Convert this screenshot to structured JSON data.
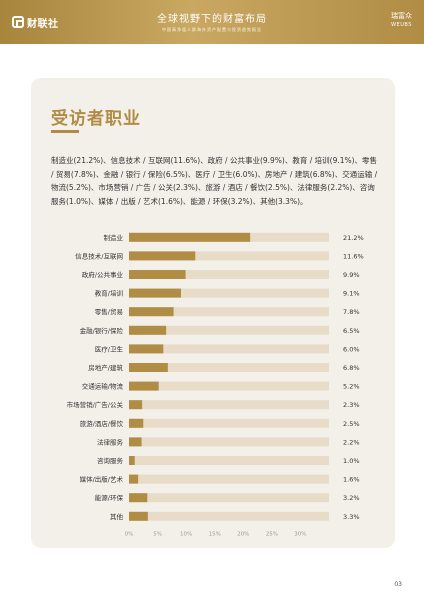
{
  "header": {
    "logo": "财联社",
    "title": "全球视野下的财富布局",
    "subtitle": "中国高净值人群海外资产配置与投资趋势报告",
    "brand_cn": "瑞富众",
    "brand_en": "WEUBS"
  },
  "section": {
    "title": "受访者职业",
    "description": "制造业(21.2%)、信息技术 / 互联网(11.6%)、政府 / 公共事业(9.9%)、教育 / 培训(9.1%)、零售 / 贸易(7.8%)、金融 / 银行 / 保险(6.5%)、医疗 / 卫生(6.0%)、房地产 / 建筑(6.8%)、交通运输 / 物流(5.2%)、市场营销 / 广告 / 公关(2.3%)、旅游 / 酒店 / 餐饮(2.5%)、法律服务(2.2%)、咨询服务(1.0%)、媒体 / 出版 / 艺术(1.6%)、能源 / 环保(3.2%)、其他(3.3%)。"
  },
  "chart_data": {
    "type": "bar",
    "orientation": "horizontal",
    "categories": [
      "制造业",
      "信息技术/互联网",
      "政府/公共事业",
      "教育/培训",
      "零售/贸易",
      "金融/银行/保险",
      "医疗/卫生",
      "房地产/建筑",
      "交通运输/物流",
      "市场营销/广告/公关",
      "旅游/酒店/餐饮",
      "法律服务",
      "咨询服务",
      "媒体/出版/艺术",
      "能源/环保",
      "其他"
    ],
    "values": [
      21.2,
      11.6,
      9.9,
      9.1,
      7.8,
      6.5,
      6.0,
      6.8,
      5.2,
      2.3,
      2.5,
      2.2,
      1.0,
      1.6,
      3.2,
      3.3
    ],
    "value_labels": [
      "21.2%",
      "11.6%",
      "9.9%",
      "9.1%",
      "7.8%",
      "6.5%",
      "6.0%",
      "6.8%",
      "5.2%",
      "2.3%",
      "2.5%",
      "2.2%",
      "1.0%",
      "1.6%",
      "3.2%",
      "3.3%"
    ],
    "xlim": [
      0,
      35
    ],
    "xticks": [
      0,
      5,
      10,
      15,
      20,
      25,
      30
    ],
    "xtick_labels": [
      "0%",
      "5%",
      "10%",
      "15%",
      "20%",
      "25%",
      "30%"
    ],
    "bar_color": "#b08c45",
    "track_color": "#e8dcc8",
    "grid": false
  },
  "page_number": "03"
}
